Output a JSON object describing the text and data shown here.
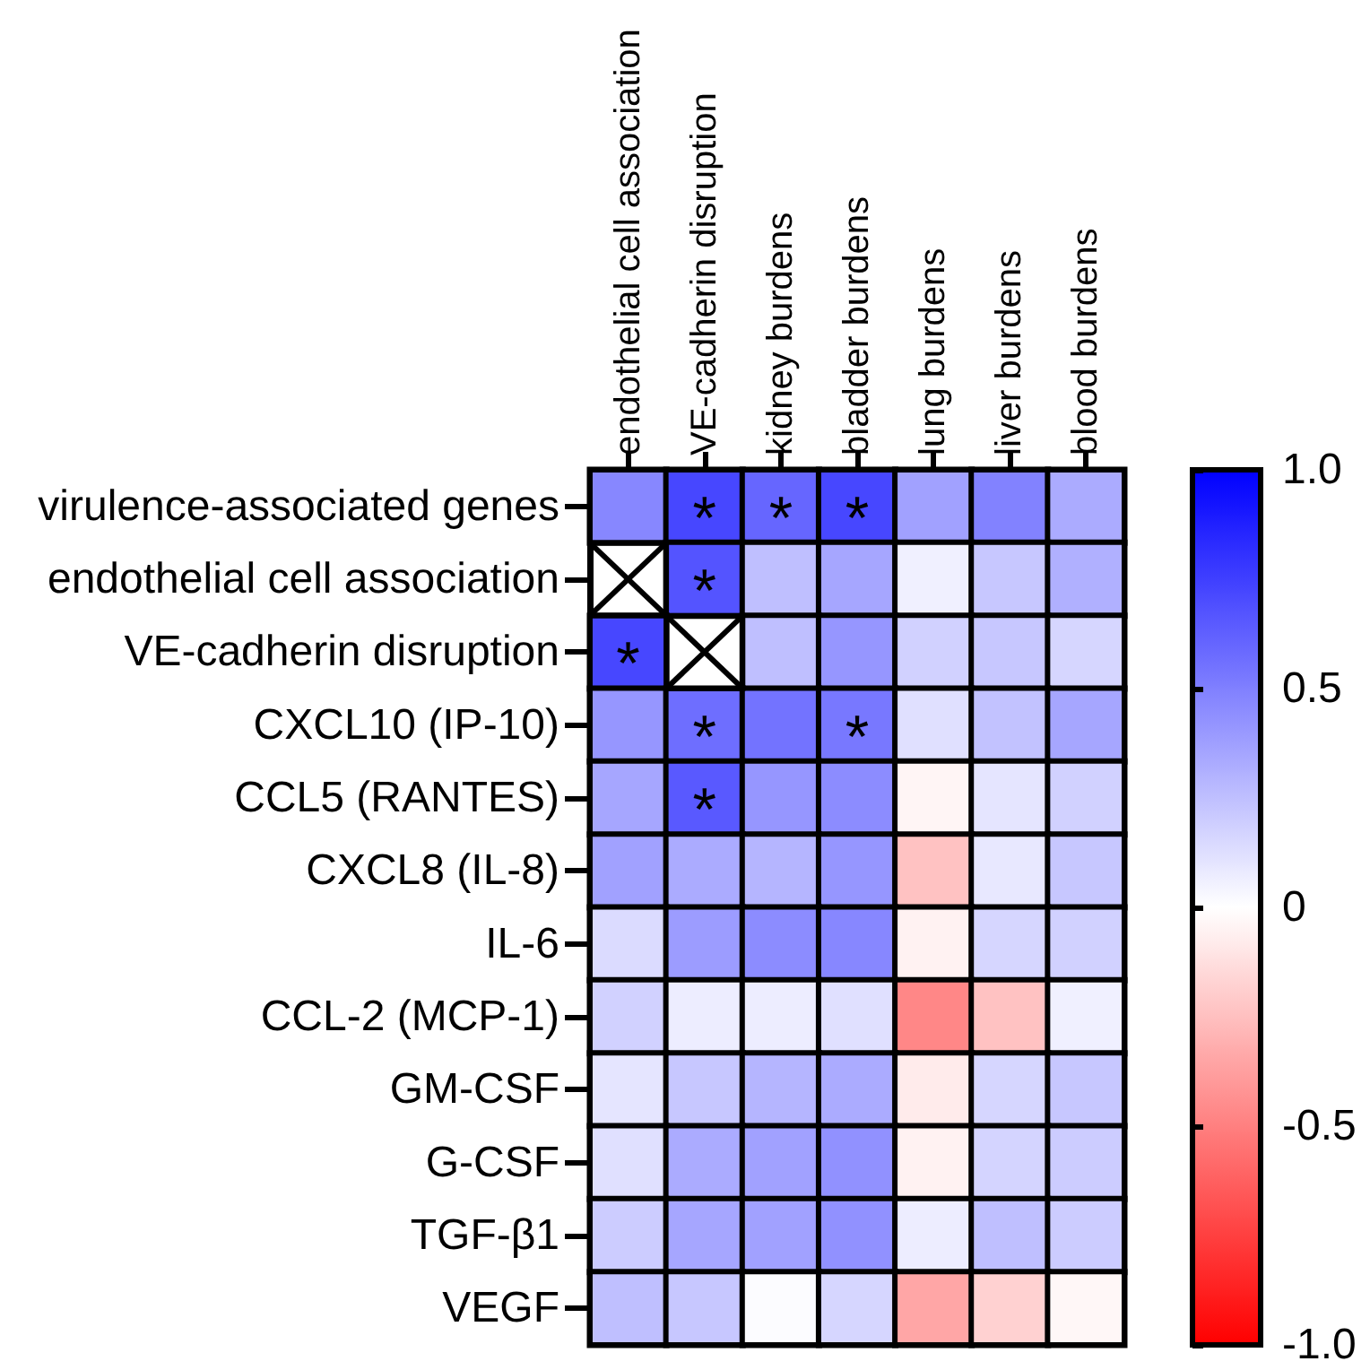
{
  "chart_data": {
    "type": "heatmap",
    "categories": [
      "endothelial cell association",
      "VE-cadherin disruption",
      "kidney burdens",
      "bladder burdens",
      "lung burdens",
      "liver burdens",
      "blood burdens"
    ],
    "y_categories": [
      "virulence-associated genes",
      "endothelial cell association",
      "VE-cadherin disruption",
      "CXCL10 (IP-10)",
      "CCL5 (RANTES)",
      "CXCL8 (IL-8)",
      "IL-6",
      "CCL-2 (MCP-1)",
      "GM-CSF",
      "G-CSF",
      "TGF-β1",
      "VEGF"
    ],
    "cells": [
      [
        0.47,
        0.72,
        0.6,
        0.72,
        0.37,
        0.49,
        0.33
      ],
      [
        null,
        0.67,
        0.25,
        0.35,
        0.06,
        0.22,
        0.31
      ],
      [
        0.72,
        null,
        0.25,
        0.41,
        0.18,
        0.22,
        0.16
      ],
      [
        0.41,
        0.57,
        0.55,
        0.53,
        0.12,
        0.24,
        0.35
      ],
      [
        0.35,
        0.65,
        0.41,
        0.45,
        -0.04,
        0.1,
        0.18
      ],
      [
        0.37,
        0.33,
        0.29,
        0.41,
        -0.24,
        0.09,
        0.22
      ],
      [
        0.14,
        0.39,
        0.45,
        0.47,
        -0.05,
        0.16,
        0.18
      ],
      [
        0.18,
        0.07,
        0.07,
        0.12,
        -0.47,
        -0.24,
        0.06
      ],
      [
        0.1,
        0.22,
        0.29,
        0.33,
        -0.08,
        0.16,
        0.22
      ],
      [
        0.12,
        0.33,
        0.37,
        0.43,
        -0.05,
        0.17,
        0.2
      ],
      [
        0.2,
        0.35,
        0.37,
        0.43,
        0.07,
        0.25,
        0.2
      ],
      [
        0.25,
        0.22,
        0.01,
        0.16,
        -0.35,
        -0.18,
        -0.03
      ]
    ],
    "cell_labels": [
      [
        null,
        "*",
        "*",
        "*",
        null,
        null,
        null
      ],
      [
        null,
        "*",
        null,
        null,
        null,
        null,
        null
      ],
      [
        "*",
        null,
        null,
        null,
        null,
        null,
        null
      ],
      [
        null,
        "*",
        null,
        "*",
        null,
        null,
        null
      ],
      [
        null,
        "*",
        null,
        null,
        null,
        null,
        null
      ],
      [
        null,
        null,
        null,
        null,
        null,
        null,
        null
      ],
      [
        null,
        null,
        null,
        null,
        null,
        null,
        null
      ],
      [
        null,
        null,
        null,
        null,
        null,
        null,
        null
      ],
      [
        null,
        null,
        null,
        null,
        null,
        null,
        null
      ],
      [
        null,
        null,
        null,
        null,
        null,
        null,
        null
      ],
      [
        null,
        null,
        null,
        null,
        null,
        null,
        null
      ],
      [
        null,
        null,
        null,
        null,
        null,
        null,
        null
      ]
    ],
    "clim": [
      -1,
      1
    ],
    "cticks": [
      {
        "value": -1,
        "label": "-1.0"
      },
      -0.5,
      0,
      0.5,
      {
        "value": 1,
        "label": "1.0"
      }
    ]
  }
}
